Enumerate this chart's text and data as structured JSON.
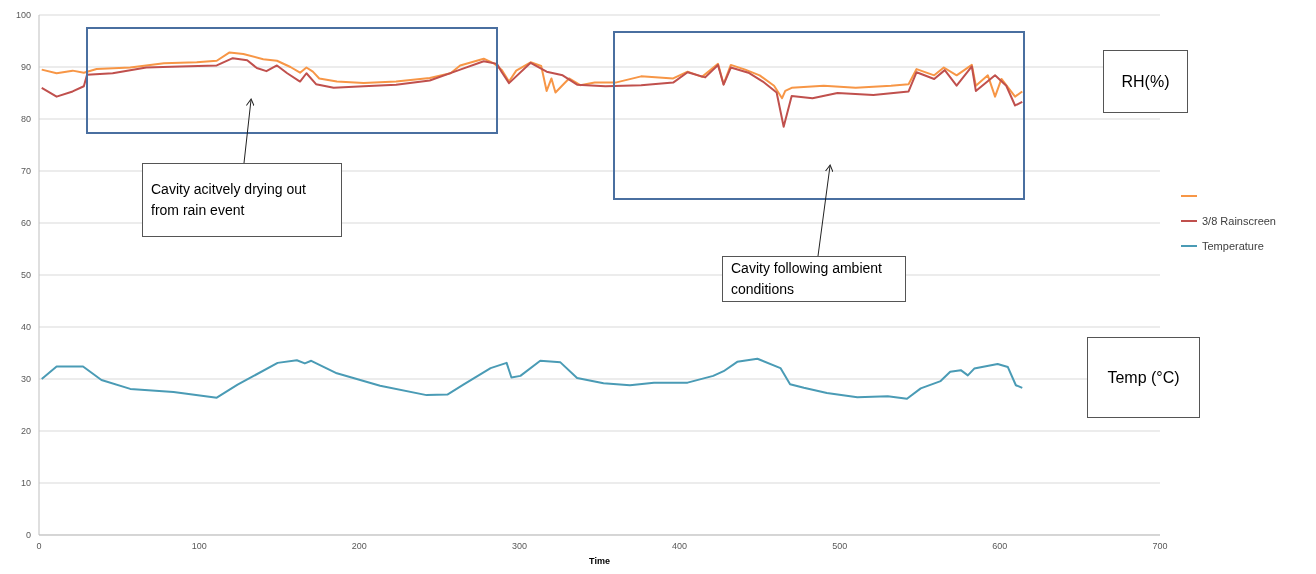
{
  "chart_data": {
    "type": "line",
    "xlabel": "Time",
    "xlim": [
      0,
      700
    ],
    "xticks": [
      0,
      100,
      200,
      300,
      400,
      500,
      600,
      700
    ],
    "ylim": [
      0,
      100
    ],
    "yticks": [
      0,
      10,
      20,
      30,
      40,
      50,
      60,
      70,
      80,
      90,
      100
    ],
    "grid": "y",
    "legend": "right",
    "marker": "none",
    "line_style": "solid",
    "annotations": [
      "Cavity acitvely drying out from rain event",
      "Cavity following ambient conditions",
      "RH(%)",
      "Temp (°C)"
    ],
    "series": [
      {
        "color": "#f79646",
        "x": [
          1.7,
          11,
          21,
          28,
          36,
          57,
          78,
          98.5,
          111,
          119,
          127.6,
          140,
          148.6,
          157,
          163,
          167,
          171,
          175,
          186,
          202.7,
          223,
          244,
          257,
          263,
          277.7,
          284,
          289,
          293.5,
          298,
          307,
          313.6,
          317,
          320,
          322.5,
          331,
          338,
          347,
          360,
          376,
          396,
          405,
          414,
          424,
          427.5,
          432,
          441,
          450,
          459,
          464,
          466,
          470,
          490,
          510,
          532,
          543,
          548,
          559,
          565,
          573,
          582.5,
          585,
          592.5,
          597,
          601,
          609.5,
          614
        ],
        "values": [
          89.5,
          88.8,
          89.3,
          88.9,
          89.6,
          89.9,
          90.7,
          90.9,
          91.2,
          92.8,
          92.5,
          91.5,
          91.2,
          90,
          88.9,
          89.9,
          89.1,
          87.8,
          87.2,
          86.9,
          87.2,
          87.9,
          88.8,
          90.3,
          91.6,
          90.7,
          89.4,
          87.2,
          89.3,
          90.9,
          90.2,
          85.4,
          87.8,
          85.1,
          87.8,
          86.5,
          87,
          87,
          88.2,
          87.8,
          89.1,
          88.1,
          90.6,
          86.7,
          90.4,
          89.5,
          88.4,
          86.4,
          84,
          85.4,
          86,
          86.4,
          86,
          86.4,
          86.7,
          89.6,
          88.4,
          89.9,
          88.4,
          90.4,
          86.4,
          88.4,
          84.3,
          87.7,
          84.3,
          85.3
        ]
      },
      {
        "name": "3/8 Rainscreen",
        "color": "#c0504d",
        "x": [
          1.7,
          11,
          21,
          28,
          30,
          46,
          67,
          88,
          111,
          121,
          130,
          136,
          142,
          148.6,
          155,
          163,
          167,
          173,
          184,
          202.7,
          223,
          244,
          263,
          277.7,
          286,
          289,
          293.5,
          307,
          317,
          327,
          336,
          353.7,
          376,
          396,
          405,
          416,
          424,
          427.5,
          432,
          443,
          452,
          460.6,
          465,
          470,
          483,
          498.6,
          521,
          543,
          548,
          559,
          565.6,
          573,
          582.5,
          585,
          597,
          604,
          609.5,
          614
        ],
        "values": [
          86,
          84.3,
          85.3,
          86.3,
          88.5,
          88.8,
          89.9,
          90.1,
          90.3,
          91.7,
          91.3,
          89.8,
          89.2,
          90.3,
          88.8,
          87.2,
          88.8,
          86.7,
          86,
          86.3,
          86.6,
          87.4,
          89.5,
          91.1,
          90.6,
          89,
          86.9,
          90.8,
          89.1,
          88.4,
          86.6,
          86.3,
          86.5,
          87,
          89,
          88,
          90.4,
          86.6,
          89.9,
          88.9,
          87.2,
          85.1,
          78.5,
          84.4,
          84,
          85,
          84.6,
          85.3,
          89,
          87.7,
          89.4,
          86.4,
          90.1,
          85.4,
          88.4,
          86.4,
          82.6,
          83.3
        ]
      },
      {
        "name": "Temperature",
        "color": "#4a9bb5",
        "x": [
          1.7,
          11,
          27.5,
          39,
          57,
          84,
          111,
          124,
          149,
          161,
          166,
          170,
          186,
          213,
          242,
          255,
          265,
          282,
          292,
          295,
          300.6,
          313,
          325.6,
          336,
          352.5,
          369,
          384,
          405,
          421,
          427.5,
          436,
          448.6,
          463,
          469,
          477.6,
          492,
          511,
          530,
          542,
          550.6,
          563,
          569,
          575.6,
          580,
          584,
          598.6,
          605,
          610,
          614
        ],
        "values": [
          30,
          32.4,
          32.4,
          29.8,
          28.1,
          27.5,
          26.4,
          28.9,
          33.1,
          33.6,
          33,
          33.5,
          31.1,
          28.7,
          26.9,
          27,
          28.9,
          32.1,
          33.1,
          30.3,
          30.6,
          33.5,
          33.2,
          30.2,
          29.2,
          28.8,
          29.3,
          29.3,
          30.6,
          31.5,
          33.3,
          33.9,
          32.1,
          29,
          28.3,
          27.3,
          26.5,
          26.7,
          26.2,
          28.2,
          29.6,
          31.4,
          31.7,
          30.7,
          32,
          32.9,
          32.3,
          28.8,
          28.3
        ]
      }
    ]
  }
}
